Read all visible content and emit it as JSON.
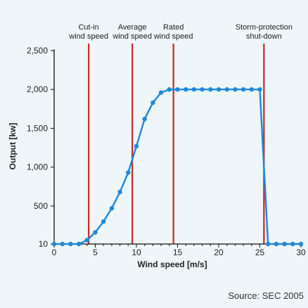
{
  "chart_data": {
    "type": "line",
    "xlabel": "Wind speed [m/s]",
    "ylabel": "Output [kw]",
    "xlim": [
      0,
      30
    ],
    "ylim": [
      10,
      2500
    ],
    "x_ticks": [
      0,
      5,
      10,
      15,
      20,
      25,
      30
    ],
    "y_ticks": [
      10,
      500,
      1000,
      1500,
      2000,
      2500
    ],
    "y_tick_labels": [
      "10",
      "500",
      "1,000",
      "1,500",
      "2,000",
      "2,500"
    ],
    "grid": false,
    "colors": {
      "series": "#1e88d8",
      "markers": "#1e88d8",
      "reference_lines": "#c62828"
    },
    "reference_lines": [
      {
        "x": 4.2,
        "label": [
          "Cut-in",
          "wind speed"
        ]
      },
      {
        "x": 9.5,
        "label": [
          "Average",
          "wind speed"
        ]
      },
      {
        "x": 14.5,
        "label": [
          "Rated",
          "wind speed"
        ]
      },
      {
        "x": 25.5,
        "label": [
          "Storm-protection",
          "shut-down"
        ]
      }
    ],
    "series": [
      {
        "x": [
          0,
          1,
          2,
          3,
          4,
          5,
          6,
          7,
          8,
          9,
          10,
          11,
          12,
          13,
          14,
          15,
          16,
          17,
          18,
          19,
          20,
          21,
          22,
          23,
          24,
          25,
          26,
          27,
          28,
          29,
          30
        ],
        "y": [
          10,
          10,
          10,
          10,
          60,
          160,
          300,
          470,
          680,
          930,
          1270,
          1620,
          1830,
          1960,
          2000,
          2000,
          2000,
          2000,
          2000,
          2000,
          2000,
          2000,
          2000,
          2000,
          2000,
          2000,
          10,
          10,
          10,
          10,
          10
        ]
      }
    ]
  },
  "source": "Source: SEC 2005"
}
